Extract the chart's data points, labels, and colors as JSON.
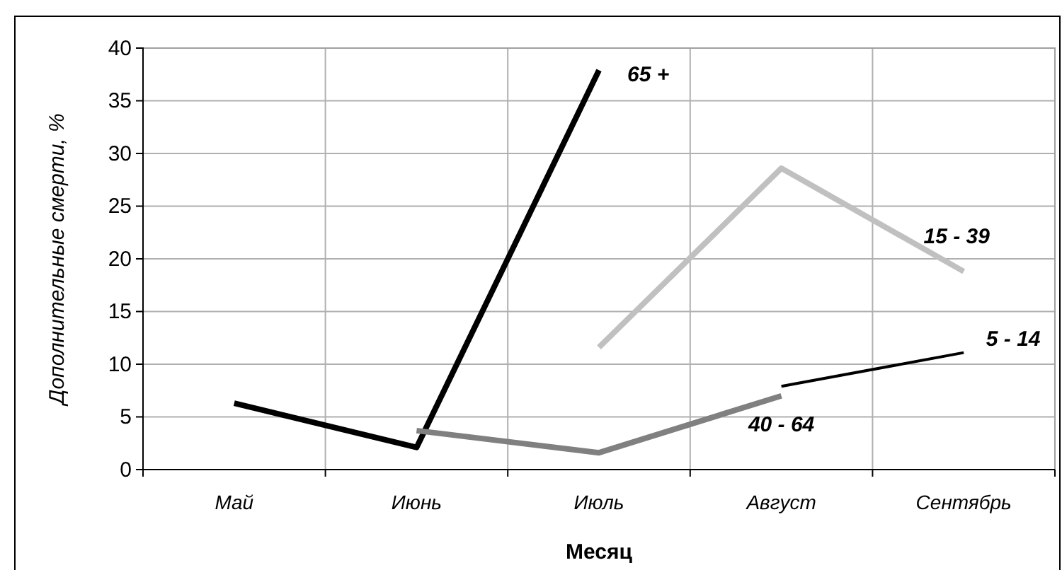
{
  "chart_data": {
    "type": "line",
    "xlabel": "Месяц",
    "ylabel": "Дополнительные смерти, %",
    "categories": [
      "Май",
      "Июнь",
      "Июль",
      "Август",
      "Сентябрь"
    ],
    "series": [
      {
        "name": "65 +",
        "color": "#000000",
        "values": [
          6.3,
          2.1,
          37.9,
          null,
          null
        ]
      },
      {
        "name": "40 - 64",
        "color": "#808080",
        "values": [
          null,
          3.7,
          1.6,
          7.0,
          null
        ]
      },
      {
        "name": "15 - 39",
        "color": "#c0c0c0",
        "values": [
          null,
          null,
          11.6,
          28.6,
          18.8
        ]
      },
      {
        "name": "5 - 14",
        "color": "#000000",
        "values": [
          null,
          null,
          null,
          7.9,
          11.1
        ]
      }
    ],
    "ylim": [
      0,
      40
    ],
    "yticks": [
      0,
      5,
      10,
      15,
      20,
      25,
      30,
      35,
      40
    ],
    "grid": true,
    "legend": false,
    "marker": "none",
    "line_style": "solid"
  }
}
